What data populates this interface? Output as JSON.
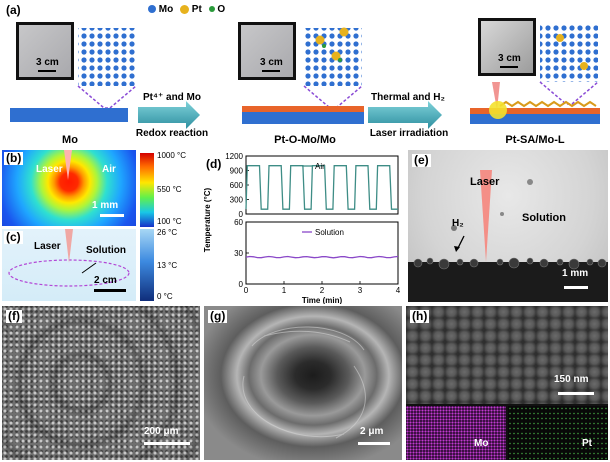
{
  "panel_a": {
    "label": "(a)",
    "legend": {
      "mo": "Mo",
      "pt": "Pt",
      "o": "O"
    },
    "stages": [
      {
        "title": "Mo",
        "scale": "3 cm"
      },
      {
        "title": "Pt-O-Mo/Mo",
        "scale": "3 cm"
      },
      {
        "title": "Pt-SA/Mo-L",
        "scale": "3 cm"
      }
    ],
    "step1": {
      "top": "Pt⁴⁺ and Mo",
      "bottom": "Redox reaction"
    },
    "step2": {
      "top": "Thermal and H₂",
      "bottom": "Laser irradiation"
    }
  },
  "panel_b": {
    "label": "(b)",
    "laser": "Laser",
    "air": "Air",
    "scale": "1 mm"
  },
  "panel_c": {
    "label": "(c)",
    "laser": "Laser",
    "solution": "Solution",
    "scale": "2 cm"
  },
  "colorbar": {
    "ticks": [
      "1000 °C",
      "550 °C",
      "100 °C",
      "26 °C",
      "13 °C",
      "0 °C"
    ]
  },
  "panel_d": {
    "label": "(d)",
    "chart_data": {
      "type": "line",
      "xlabel": "Time (min)",
      "ylabel": "Temperature (°C)",
      "xlim": [
        0,
        4
      ],
      "xticks": [
        0,
        1,
        2,
        3,
        4
      ],
      "subplots": [
        {
          "legend": "Air",
          "color": "#3e8d86",
          "ylim": [
            0,
            1200
          ],
          "yticks": [
            0,
            300,
            600,
            900,
            1200
          ],
          "cycles": 7,
          "high": 1000,
          "low": 100
        },
        {
          "legend": "Solution",
          "color": "#8a48c8",
          "ylim": [
            0,
            60
          ],
          "yticks": [
            0,
            30,
            60
          ],
          "level": 26
        }
      ]
    }
  },
  "panel_e": {
    "label": "(e)",
    "laser": "Laser",
    "h2": "H₂",
    "solution": "Solution",
    "scale": "1 mm"
  },
  "panel_f": {
    "label": "(f)",
    "scale": "200 μm"
  },
  "panel_g": {
    "label": "(g)",
    "scale": "2 μm"
  },
  "panel_h": {
    "label": "(h)",
    "scale": "150 nm",
    "map_mo": "Mo",
    "map_pt": "Pt"
  }
}
